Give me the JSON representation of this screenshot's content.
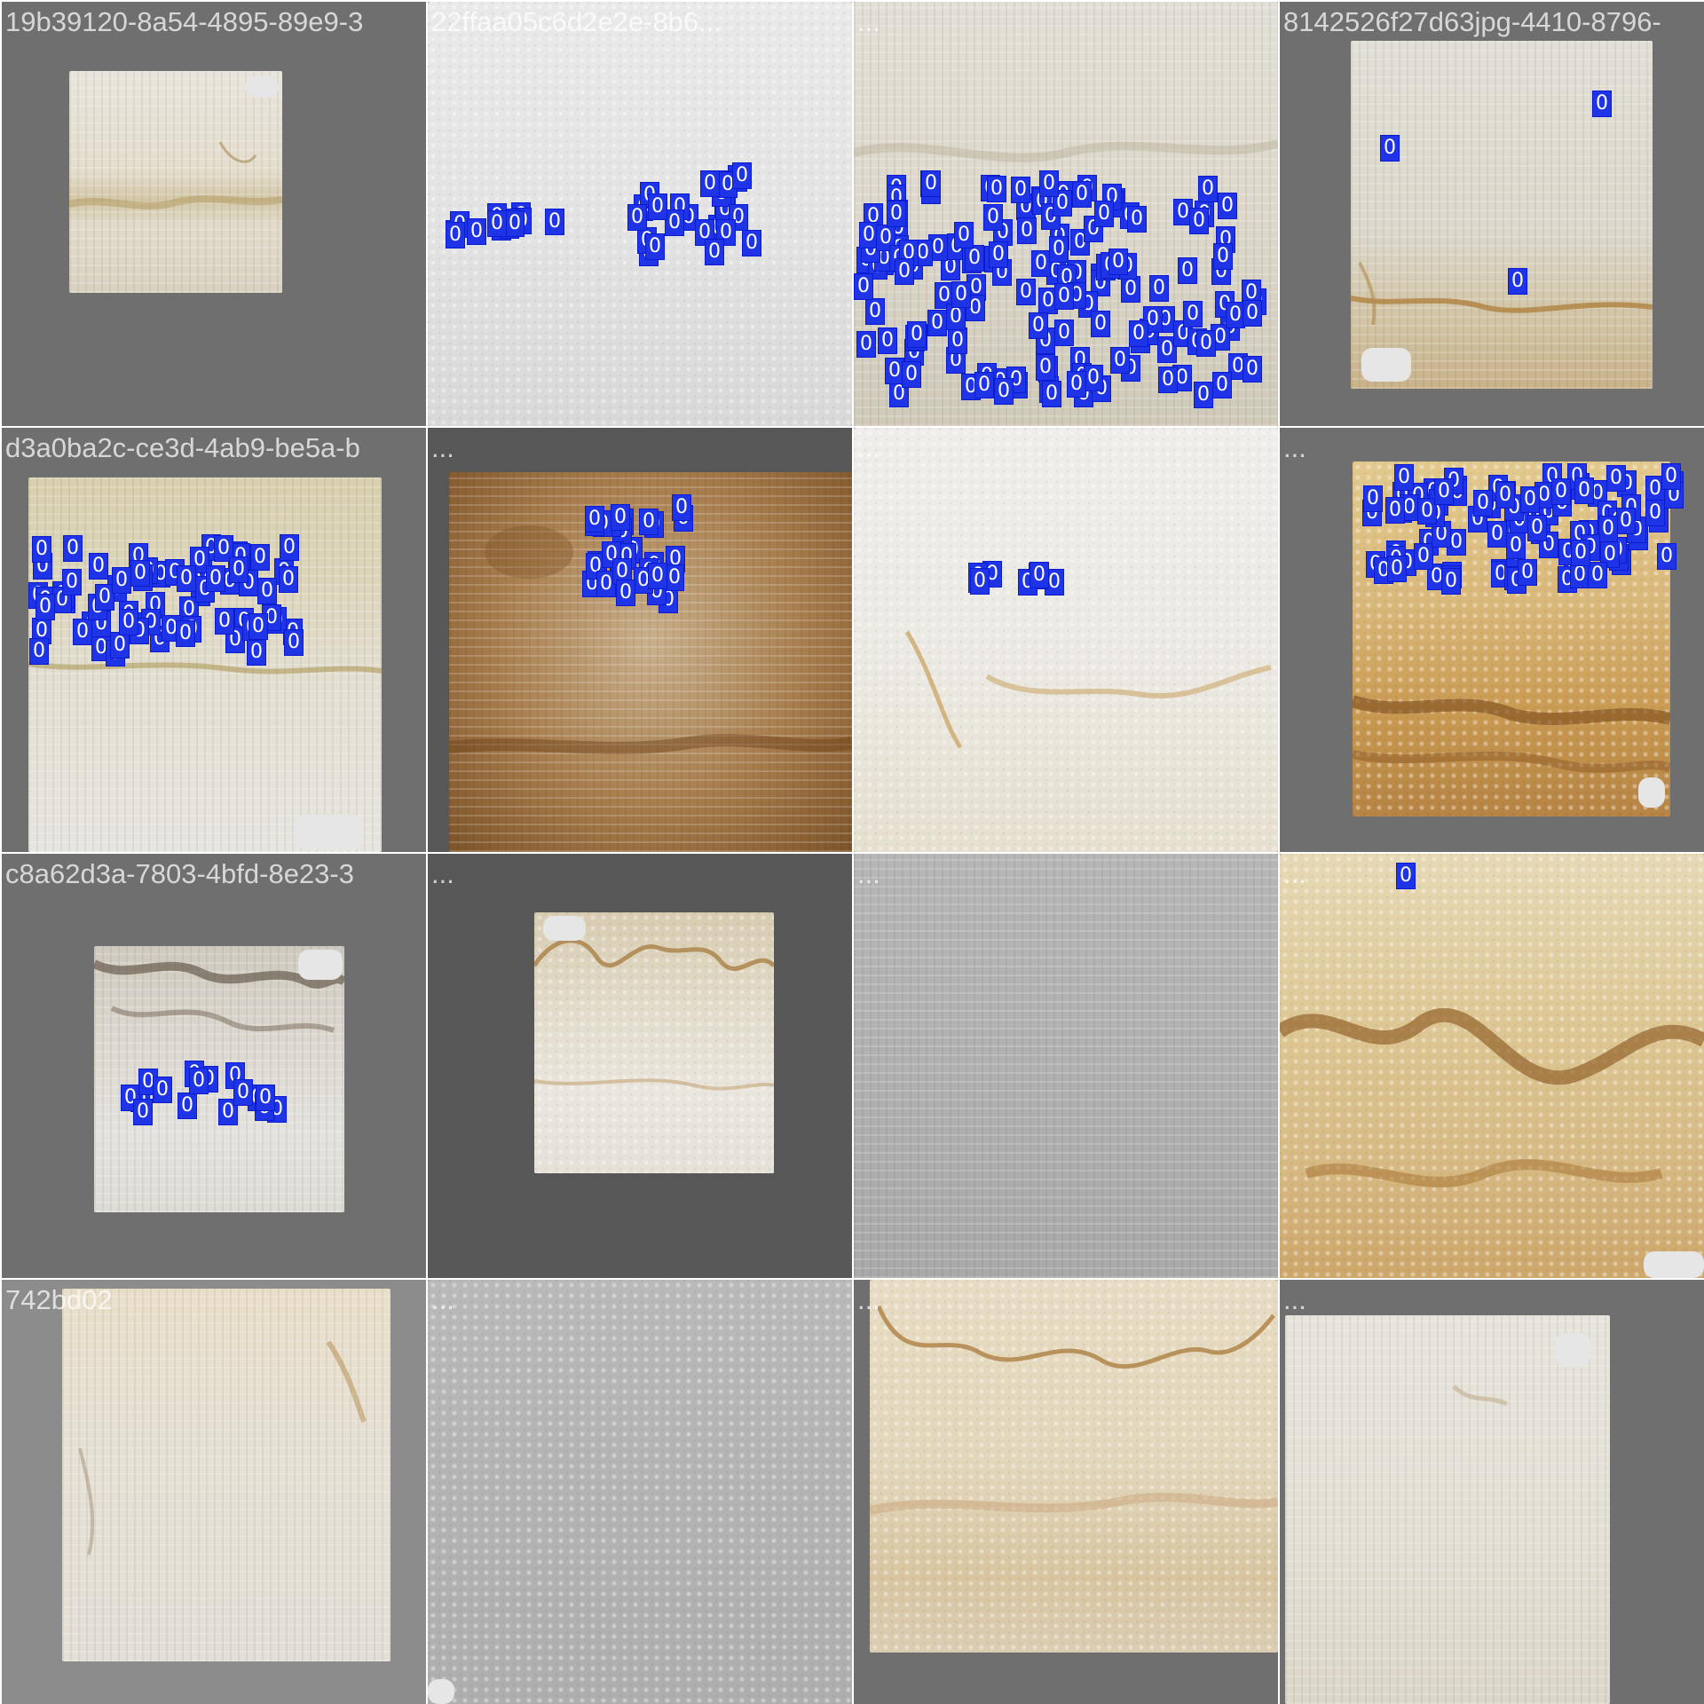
{
  "detection_label": "0",
  "detection_color": "#1f34e6",
  "tiles": [
    {
      "caption": "19b39120-8a54-4895-89e9-3",
      "detections": 0
    },
    {
      "caption": "22ffaa05c6d2e2e-8b6...",
      "detections": 38
    },
    {
      "caption": "...",
      "detections": 150
    },
    {
      "caption": "8142526f27d63jpg-4410-8796-",
      "detections": 3
    },
    {
      "caption": "d3a0ba2c-ce3d-4ab9-be5a-b",
      "detections": 70
    },
    {
      "caption": "...",
      "detections": 30
    },
    {
      "caption": "...",
      "detections": 8
    },
    {
      "caption": "...",
      "detections": 90
    },
    {
      "caption": "c8a62d3a-7803-4bfd-8e23-3",
      "detections": 16
    },
    {
      "caption": "...",
      "detections": 0
    },
    {
      "caption": "...",
      "detections": 0
    },
    {
      "caption": "...",
      "detections": 1
    },
    {
      "caption": "742bd02",
      "detections": 0
    },
    {
      "caption": "...",
      "detections": 0
    },
    {
      "caption": "...",
      "detections": 0
    },
    {
      "caption": "...",
      "detections": 0
    }
  ]
}
